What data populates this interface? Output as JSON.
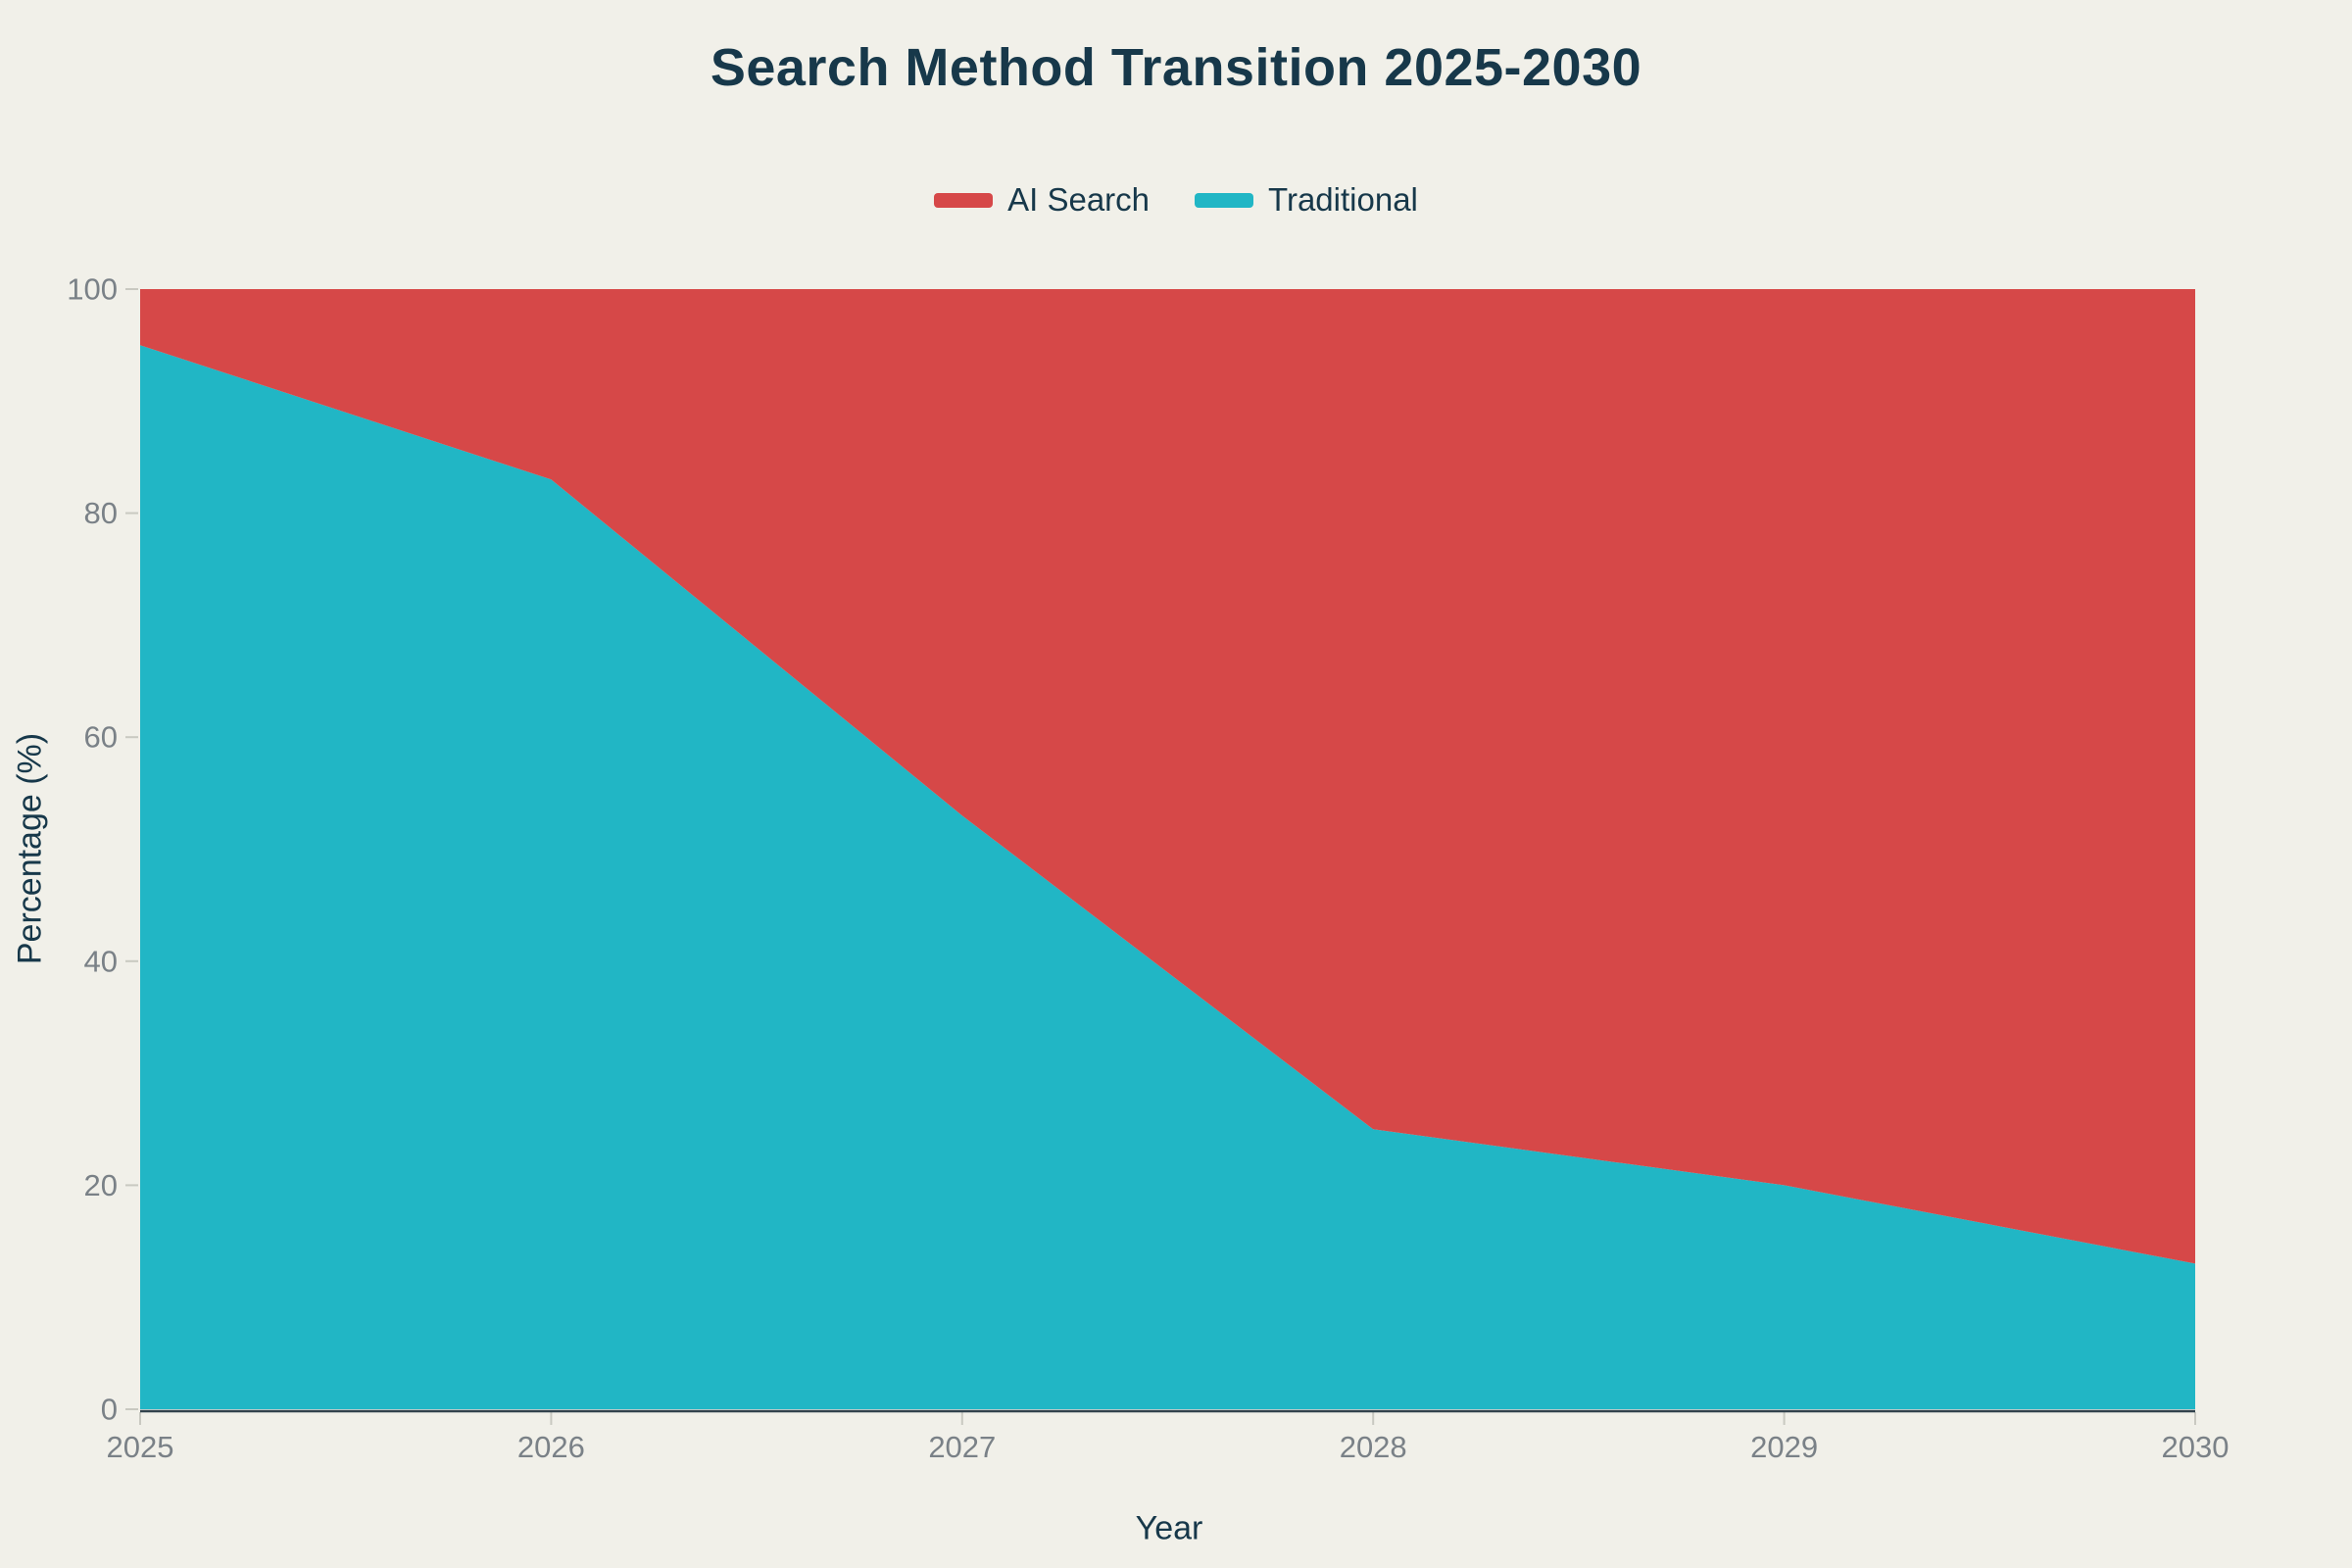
{
  "page": {
    "background": "#f1f0e9"
  },
  "chart_data": {
    "type": "area",
    "stacked": true,
    "title": "Search Method Transition 2025-2030",
    "xlabel": "Year",
    "ylabel": "Percentage (%)",
    "x": [
      2025,
      2026,
      2027,
      2028,
      2029,
      2030
    ],
    "series": [
      {
        "name": "AI Search",
        "color": "#d64848",
        "values": [
          5,
          17,
          47,
          75,
          80,
          87
        ]
      },
      {
        "name": "Traditional",
        "color": "#21b6c5",
        "values": [
          95,
          83,
          53,
          25,
          20,
          13
        ]
      }
    ],
    "ylim": [
      0,
      100
    ],
    "yticks": [
      0,
      20,
      40,
      60,
      80,
      100
    ],
    "xticks": [
      2025,
      2026,
      2027,
      2028,
      2029,
      2030
    ],
    "legend_position": "top-center",
    "grid": false
  },
  "colors": {
    "text_dark": "#17384a",
    "tick_label": "#7a8187",
    "axis_line": "#31424c",
    "tick_mark": "#c9c9c1"
  }
}
